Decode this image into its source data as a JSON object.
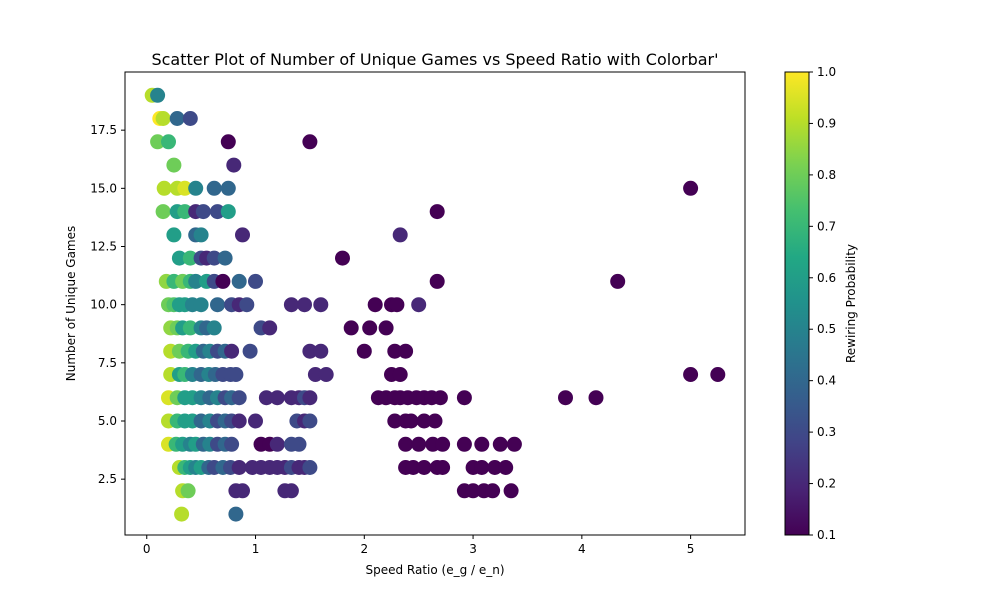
{
  "chart_data": {
    "type": "scatter",
    "title": "Scatter Plot of Number of Unique Games vs Speed Ratio with Colorbar'",
    "xlabel": "Speed Ratio (e_g / e_n)",
    "ylabel": "Number of Unique Games",
    "xlim": [
      -0.2,
      5.5
    ],
    "ylim": [
      0.1,
      20.0
    ],
    "xticks": [
      0,
      1,
      2,
      3,
      4,
      5
    ],
    "xtick_labels": [
      "0",
      "1",
      "2",
      "3",
      "4",
      "5"
    ],
    "yticks": [
      2.5,
      5.0,
      7.5,
      10.0,
      12.5,
      15.0,
      17.5
    ],
    "ytick_labels": [
      "2.5",
      "5.0",
      "7.5",
      "10.0",
      "12.5",
      "15.0",
      "17.5"
    ],
    "grid": false,
    "colorbar": {
      "label": "Rewiring Probability",
      "colormap": "viridis",
      "range": [
        0.1,
        1.0
      ],
      "ticks": [
        0.1,
        0.2,
        0.3,
        0.4,
        0.5,
        0.6,
        0.7,
        0.8,
        0.9,
        1.0
      ],
      "tick_labels": [
        "0.1",
        "0.2",
        "0.3",
        "0.4",
        "0.5",
        "0.6",
        "0.7",
        "0.8",
        "0.9",
        "1.0"
      ]
    },
    "points": [
      [
        0.05,
        19,
        0.9
      ],
      [
        0.1,
        19,
        0.5
      ],
      [
        0.12,
        18,
        1.0
      ],
      [
        0.15,
        18,
        0.9
      ],
      [
        0.28,
        18,
        0.4
      ],
      [
        0.4,
        18,
        0.3
      ],
      [
        0.75,
        17,
        0.1
      ],
      [
        1.5,
        17,
        0.1
      ],
      [
        0.1,
        17,
        0.8
      ],
      [
        0.2,
        17,
        0.7
      ],
      [
        0.25,
        16,
        0.8
      ],
      [
        0.8,
        16,
        0.2
      ],
      [
        0.16,
        15,
        0.9
      ],
      [
        0.28,
        15,
        0.9
      ],
      [
        0.35,
        15,
        0.95
      ],
      [
        0.45,
        15,
        0.5
      ],
      [
        0.62,
        15,
        0.4
      ],
      [
        0.75,
        15,
        0.4
      ],
      [
        5.0,
        15,
        0.1
      ],
      [
        0.15,
        14,
        0.8
      ],
      [
        0.28,
        14,
        0.6
      ],
      [
        0.35,
        14,
        0.7
      ],
      [
        0.45,
        14,
        0.2
      ],
      [
        0.52,
        14,
        0.3
      ],
      [
        0.65,
        14,
        0.3
      ],
      [
        0.75,
        14,
        0.6
      ],
      [
        2.67,
        14,
        0.1
      ],
      [
        0.25,
        13,
        0.6
      ],
      [
        0.45,
        13,
        0.4
      ],
      [
        0.5,
        13,
        0.5
      ],
      [
        0.88,
        13,
        0.2
      ],
      [
        2.33,
        13,
        0.2
      ],
      [
        0.3,
        12,
        0.6
      ],
      [
        0.4,
        12,
        0.7
      ],
      [
        0.5,
        12,
        0.3
      ],
      [
        0.55,
        12,
        0.2
      ],
      [
        0.62,
        12,
        0.3
      ],
      [
        0.72,
        12,
        0.4
      ],
      [
        1.8,
        12,
        0.1
      ],
      [
        0.18,
        11,
        0.85
      ],
      [
        0.25,
        11,
        0.7
      ],
      [
        0.33,
        11,
        0.8
      ],
      [
        0.4,
        11,
        0.7
      ],
      [
        0.45,
        11,
        0.5
      ],
      [
        0.55,
        11,
        0.6
      ],
      [
        0.62,
        11,
        0.3
      ],
      [
        0.7,
        11,
        0.1
      ],
      [
        0.85,
        11,
        0.4
      ],
      [
        1.0,
        11,
        0.3
      ],
      [
        2.67,
        11,
        0.1
      ],
      [
        4.33,
        11,
        0.1
      ],
      [
        0.2,
        10,
        0.8
      ],
      [
        0.25,
        10,
        0.75
      ],
      [
        0.3,
        10,
        0.6
      ],
      [
        0.35,
        10,
        0.6
      ],
      [
        0.42,
        10,
        0.5
      ],
      [
        0.5,
        10,
        0.5
      ],
      [
        0.65,
        10,
        0.4
      ],
      [
        0.78,
        10,
        0.3
      ],
      [
        0.85,
        10,
        0.2
      ],
      [
        0.92,
        10,
        0.3
      ],
      [
        1.33,
        10,
        0.2
      ],
      [
        1.45,
        10,
        0.2
      ],
      [
        1.6,
        10,
        0.2
      ],
      [
        2.1,
        10,
        0.1
      ],
      [
        2.25,
        10,
        0.1
      ],
      [
        2.3,
        10,
        0.1
      ],
      [
        2.5,
        10,
        0.2
      ],
      [
        0.22,
        9,
        0.85
      ],
      [
        0.28,
        9,
        0.8
      ],
      [
        0.33,
        9,
        0.6
      ],
      [
        0.4,
        9,
        0.7
      ],
      [
        0.5,
        9,
        0.5
      ],
      [
        0.55,
        9,
        0.4
      ],
      [
        0.62,
        9,
        0.5
      ],
      [
        1.05,
        9,
        0.3
      ],
      [
        1.13,
        9,
        0.2
      ],
      [
        1.88,
        9,
        0.1
      ],
      [
        2.05,
        9,
        0.1
      ],
      [
        2.2,
        9,
        0.1
      ],
      [
        0.22,
        8,
        0.9
      ],
      [
        0.3,
        8,
        0.8
      ],
      [
        0.38,
        8,
        0.7
      ],
      [
        0.45,
        8,
        0.6
      ],
      [
        0.52,
        8,
        0.4
      ],
      [
        0.58,
        8,
        0.5
      ],
      [
        0.65,
        8,
        0.3
      ],
      [
        0.72,
        8,
        0.4
      ],
      [
        0.78,
        8,
        0.2
      ],
      [
        0.95,
        8,
        0.3
      ],
      [
        1.5,
        8,
        0.2
      ],
      [
        1.6,
        8,
        0.2
      ],
      [
        2.0,
        8,
        0.1
      ],
      [
        2.28,
        8,
        0.1
      ],
      [
        2.38,
        8,
        0.1
      ],
      [
        0.22,
        7,
        0.9
      ],
      [
        0.3,
        7,
        0.6
      ],
      [
        0.35,
        7,
        0.7
      ],
      [
        0.42,
        7,
        0.5
      ],
      [
        0.5,
        7,
        0.4
      ],
      [
        0.57,
        7,
        0.5
      ],
      [
        0.63,
        7,
        0.4
      ],
      [
        0.7,
        7,
        0.3
      ],
      [
        0.77,
        7,
        0.3
      ],
      [
        0.82,
        7,
        0.3
      ],
      [
        1.55,
        7,
        0.2
      ],
      [
        1.65,
        7,
        0.2
      ],
      [
        2.25,
        7,
        0.1
      ],
      [
        2.33,
        7,
        0.1
      ],
      [
        5.0,
        7,
        0.1
      ],
      [
        5.25,
        7,
        0.1
      ],
      [
        0.2,
        6,
        0.95
      ],
      [
        0.28,
        6,
        0.8
      ],
      [
        0.35,
        6,
        0.6
      ],
      [
        0.42,
        6,
        0.6
      ],
      [
        0.5,
        6,
        0.5
      ],
      [
        0.58,
        6,
        0.4
      ],
      [
        0.65,
        6,
        0.5
      ],
      [
        0.72,
        6,
        0.3
      ],
      [
        0.78,
        6,
        0.4
      ],
      [
        0.85,
        6,
        0.3
      ],
      [
        1.1,
        6,
        0.2
      ],
      [
        1.2,
        6,
        0.2
      ],
      [
        1.33,
        6,
        0.2
      ],
      [
        1.4,
        6,
        0.2
      ],
      [
        1.45,
        6,
        0.3
      ],
      [
        1.5,
        6,
        0.2
      ],
      [
        2.13,
        6,
        0.1
      ],
      [
        2.2,
        6,
        0.1
      ],
      [
        2.28,
        6,
        0.1
      ],
      [
        2.33,
        6,
        0.1
      ],
      [
        2.4,
        6,
        0.1
      ],
      [
        2.48,
        6,
        0.1
      ],
      [
        2.55,
        6,
        0.1
      ],
      [
        2.62,
        6,
        0.1
      ],
      [
        2.7,
        6,
        0.1
      ],
      [
        2.92,
        6,
        0.1
      ],
      [
        3.85,
        6,
        0.1
      ],
      [
        4.13,
        6,
        0.1
      ],
      [
        0.2,
        5,
        0.9
      ],
      [
        0.28,
        5,
        0.7
      ],
      [
        0.35,
        5,
        0.6
      ],
      [
        0.42,
        5,
        0.6
      ],
      [
        0.5,
        5,
        0.4
      ],
      [
        0.58,
        5,
        0.5
      ],
      [
        0.65,
        5,
        0.3
      ],
      [
        0.72,
        5,
        0.4
      ],
      [
        0.78,
        5,
        0.3
      ],
      [
        0.85,
        5,
        0.2
      ],
      [
        1.0,
        5,
        0.2
      ],
      [
        1.38,
        5,
        0.3
      ],
      [
        1.45,
        5,
        0.2
      ],
      [
        1.5,
        5,
        0.3
      ],
      [
        2.28,
        5,
        0.1
      ],
      [
        2.38,
        5,
        0.1
      ],
      [
        2.43,
        5,
        0.1
      ],
      [
        2.55,
        5,
        0.1
      ],
      [
        2.65,
        5,
        0.1
      ],
      [
        0.2,
        4,
        0.95
      ],
      [
        0.27,
        4,
        0.7
      ],
      [
        0.33,
        4,
        0.6
      ],
      [
        0.4,
        4,
        0.5
      ],
      [
        0.45,
        4,
        0.6
      ],
      [
        0.52,
        4,
        0.4
      ],
      [
        0.58,
        4,
        0.5
      ],
      [
        0.65,
        4,
        0.3
      ],
      [
        0.72,
        4,
        0.4
      ],
      [
        0.78,
        4,
        0.3
      ],
      [
        1.05,
        4,
        0.1
      ],
      [
        1.13,
        4,
        0.1
      ],
      [
        1.2,
        4,
        0.2
      ],
      [
        1.33,
        4,
        0.3
      ],
      [
        1.4,
        4,
        0.3
      ],
      [
        2.38,
        4,
        0.1
      ],
      [
        2.5,
        4,
        0.1
      ],
      [
        2.63,
        4,
        0.1
      ],
      [
        2.72,
        4,
        0.1
      ],
      [
        2.92,
        4,
        0.1
      ],
      [
        3.08,
        4,
        0.1
      ],
      [
        3.25,
        4,
        0.1
      ],
      [
        3.38,
        4,
        0.1
      ],
      [
        0.3,
        3,
        0.9
      ],
      [
        0.35,
        3,
        0.7
      ],
      [
        0.4,
        3,
        0.6
      ],
      [
        0.45,
        3,
        0.5
      ],
      [
        0.5,
        3,
        0.6
      ],
      [
        0.57,
        3,
        0.4
      ],
      [
        0.62,
        3,
        0.3
      ],
      [
        0.7,
        3,
        0.4
      ],
      [
        0.77,
        3,
        0.3
      ],
      [
        0.85,
        3,
        0.2
      ],
      [
        0.97,
        3,
        0.2
      ],
      [
        1.05,
        3,
        0.2
      ],
      [
        1.13,
        3,
        0.2
      ],
      [
        1.2,
        3,
        0.2
      ],
      [
        1.27,
        3,
        0.2
      ],
      [
        1.33,
        3,
        0.3
      ],
      [
        1.4,
        3,
        0.2
      ],
      [
        1.45,
        3,
        0.2
      ],
      [
        1.5,
        3,
        0.3
      ],
      [
        2.38,
        3,
        0.1
      ],
      [
        2.45,
        3,
        0.1
      ],
      [
        2.55,
        3,
        0.1
      ],
      [
        2.67,
        3,
        0.1
      ],
      [
        2.72,
        3,
        0.1
      ],
      [
        3.0,
        3,
        0.1
      ],
      [
        3.08,
        3,
        0.1
      ],
      [
        3.2,
        3,
        0.1
      ],
      [
        3.3,
        3,
        0.1
      ],
      [
        0.33,
        2,
        0.9
      ],
      [
        0.38,
        2,
        0.8
      ],
      [
        0.82,
        2,
        0.2
      ],
      [
        0.88,
        2,
        0.2
      ],
      [
        1.27,
        2,
        0.2
      ],
      [
        1.33,
        2,
        0.2
      ],
      [
        2.92,
        2,
        0.1
      ],
      [
        3.0,
        2,
        0.1
      ],
      [
        3.1,
        2,
        0.1
      ],
      [
        3.18,
        2,
        0.1
      ],
      [
        3.35,
        2,
        0.1
      ],
      [
        0.32,
        1,
        0.9
      ],
      [
        0.82,
        1,
        0.4
      ]
    ]
  }
}
